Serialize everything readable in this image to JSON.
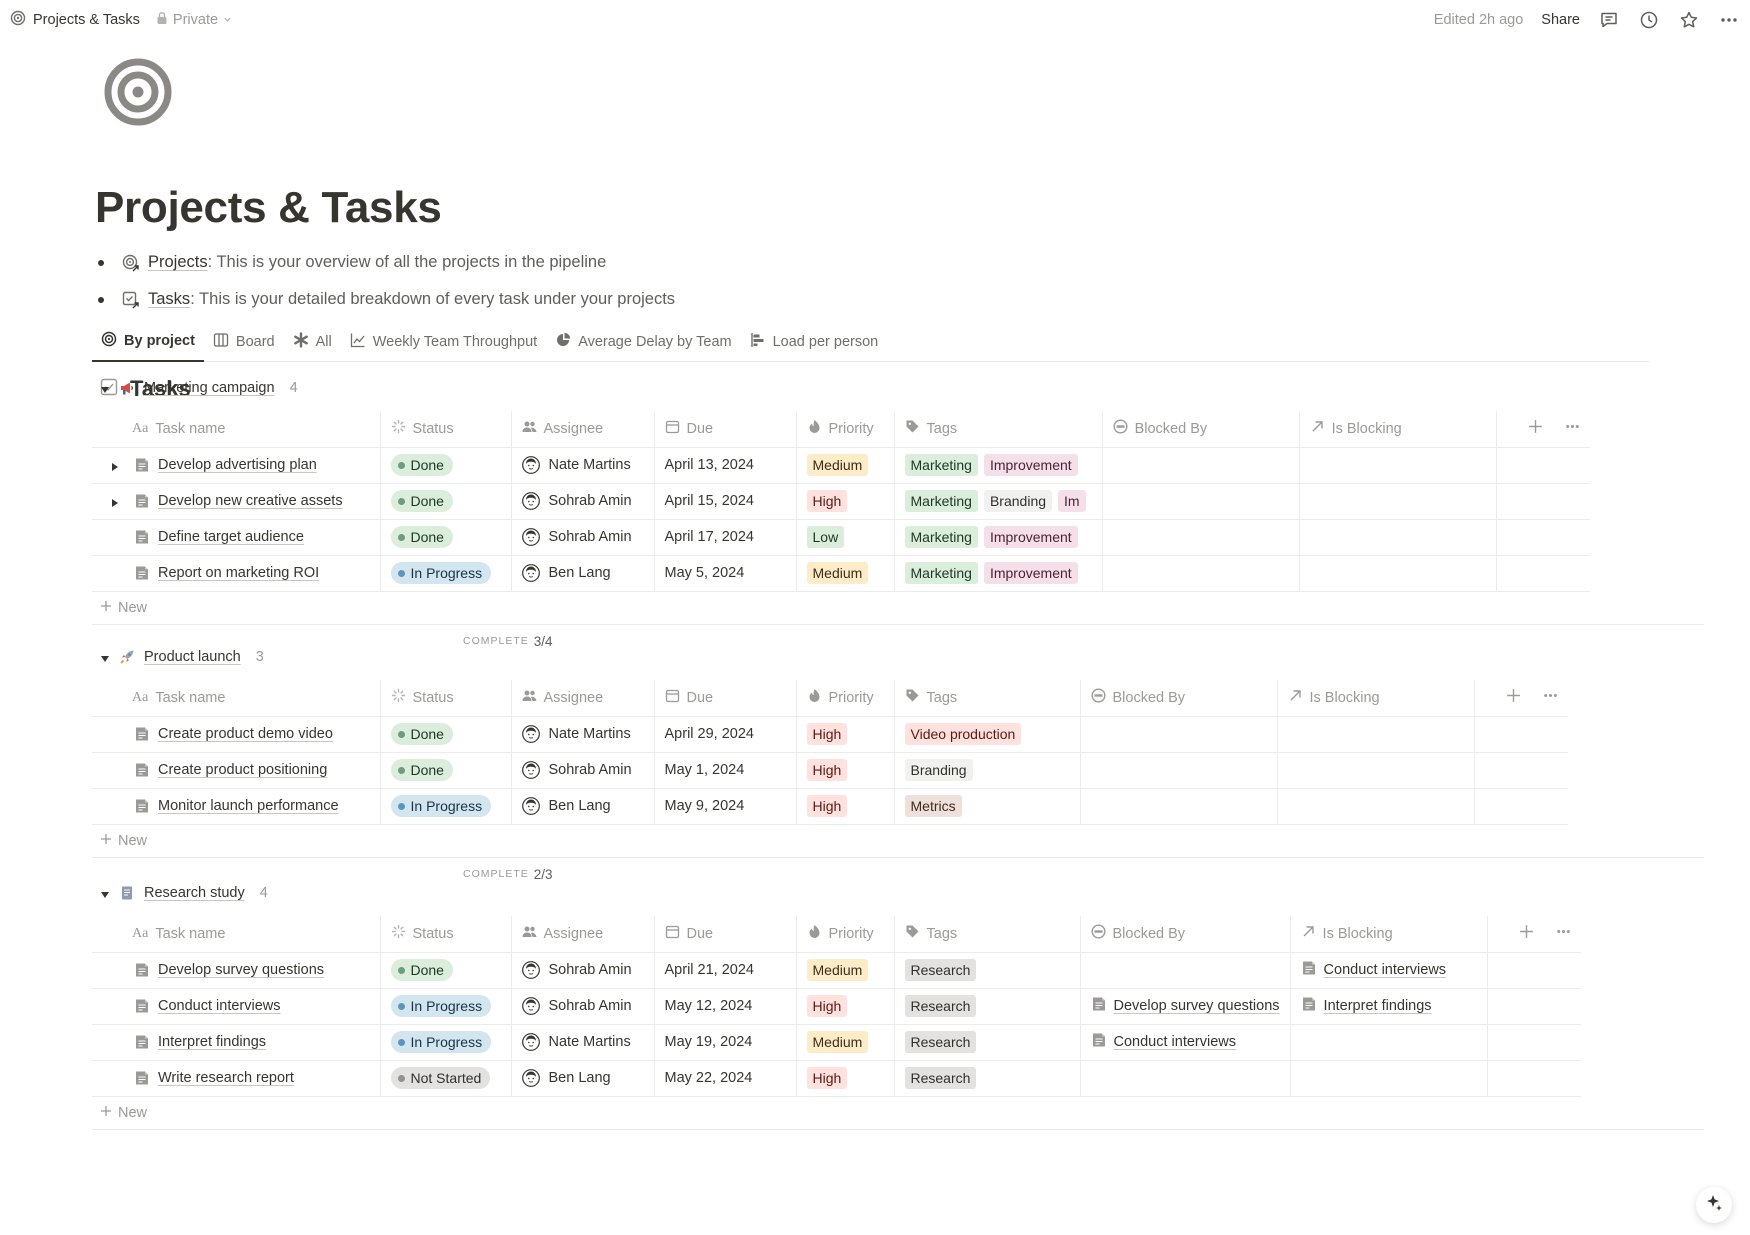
{
  "topbar": {
    "breadcrumb": "Projects & Tasks",
    "privacy": "Private",
    "edited": "Edited 2h ago",
    "share": "Share"
  },
  "page": {
    "title": "Projects & Tasks",
    "bullets": [
      {
        "link": "Projects",
        "text": ": This is your overview of all the projects in the pipeline"
      },
      {
        "link": "Tasks",
        "text": ": This is your detailed breakdown of every task under your projects"
      }
    ]
  },
  "tabs": [
    {
      "label": "By project",
      "icon": "target-icon",
      "active": true
    },
    {
      "label": "Board",
      "icon": "board-icon"
    },
    {
      "label": "All",
      "icon": "asterisk-icon"
    },
    {
      "label": "Weekly Team Throughput",
      "icon": "line-chart-icon"
    },
    {
      "label": "Average Delay by Team",
      "icon": "pie-chart-icon"
    },
    {
      "label": "Load per person",
      "icon": "bar-chart-icon"
    }
  ],
  "database": {
    "title": "Tasks",
    "columns": {
      "name": "Task name",
      "status": "Status",
      "assignee": "Assignee",
      "due": "Due",
      "priority": "Priority",
      "tags": "Tags",
      "blocked_by": "Blocked By",
      "is_blocking": "Is Blocking"
    },
    "new_label": "New",
    "complete_label": "COMPLETE"
  },
  "groups": [
    {
      "name": "Marketing campaign",
      "count": "4",
      "icon": "megaphone-icon",
      "complete": "3/4",
      "rows": [
        {
          "name": "Develop advertising plan",
          "expandable": true,
          "status": "Done",
          "assignee": "Nate Martins",
          "due": "April 13, 2024",
          "priority": "Medium",
          "tags": [
            "Marketing",
            "Improvement"
          ],
          "blocked_by": "",
          "is_blocking": ""
        },
        {
          "name": "Develop new creative assets",
          "expandable": true,
          "status": "Done",
          "assignee": "Sohrab Amin",
          "due": "April 15, 2024",
          "priority": "High",
          "tags": [
            "Marketing",
            "Branding",
            "Im"
          ],
          "blocked_by": "",
          "is_blocking": ""
        },
        {
          "name": "Define target audience",
          "expandable": false,
          "status": "Done",
          "assignee": "Sohrab Amin",
          "due": "April 17, 2024",
          "priority": "Low",
          "tags": [
            "Marketing",
            "Improvement"
          ],
          "blocked_by": "",
          "is_blocking": ""
        },
        {
          "name": "Report on marketing ROI",
          "expandable": false,
          "status": "In Progress",
          "assignee": "Ben Lang",
          "due": "May 5, 2024",
          "priority": "Medium",
          "tags": [
            "Marketing",
            "Improvement"
          ],
          "blocked_by": "",
          "is_blocking": ""
        }
      ]
    },
    {
      "name": "Product launch",
      "count": "3",
      "icon": "rocket-icon",
      "complete": "2/3",
      "rows": [
        {
          "name": "Create product demo video",
          "expandable": false,
          "status": "Done",
          "assignee": "Nate Martins",
          "due": "April 29, 2024",
          "priority": "High",
          "tags": [
            "Video production"
          ],
          "blocked_by": "",
          "is_blocking": ""
        },
        {
          "name": "Create product positioning",
          "expandable": false,
          "status": "Done",
          "assignee": "Sohrab Amin",
          "due": "May 1, 2024",
          "priority": "High",
          "tags": [
            "Branding"
          ],
          "blocked_by": "",
          "is_blocking": ""
        },
        {
          "name": "Monitor launch performance",
          "expandable": false,
          "status": "In Progress",
          "assignee": "Ben Lang",
          "due": "May 9, 2024",
          "priority": "High",
          "tags": [
            "Metrics"
          ],
          "blocked_by": "",
          "is_blocking": ""
        }
      ]
    },
    {
      "name": "Research study",
      "count": "4",
      "icon": "document-icon",
      "complete": "",
      "rows": [
        {
          "name": "Develop survey questions",
          "expandable": false,
          "status": "Done",
          "assignee": "Sohrab Amin",
          "due": "April 21, 2024",
          "priority": "Medium",
          "tags": [
            "Research"
          ],
          "blocked_by": "",
          "is_blocking": "Conduct interviews"
        },
        {
          "name": "Conduct interviews",
          "expandable": false,
          "status": "In Progress",
          "assignee": "Sohrab Amin",
          "due": "May 12, 2024",
          "priority": "High",
          "tags": [
            "Research"
          ],
          "blocked_by": "Develop survey questions",
          "is_blocking": "Interpret findings"
        },
        {
          "name": "Interpret findings",
          "expandable": false,
          "status": "In Progress",
          "assignee": "Nate Martins",
          "due": "May 19, 2024",
          "priority": "Medium",
          "tags": [
            "Research"
          ],
          "blocked_by": "Conduct interviews",
          "is_blocking": ""
        },
        {
          "name": "Write research report",
          "expandable": false,
          "status": "Not Started",
          "assignee": "Ben Lang",
          "due": "May 22, 2024",
          "priority": "High",
          "tags": [
            "Research"
          ],
          "blocked_by": "",
          "is_blocking": ""
        }
      ]
    }
  ]
}
